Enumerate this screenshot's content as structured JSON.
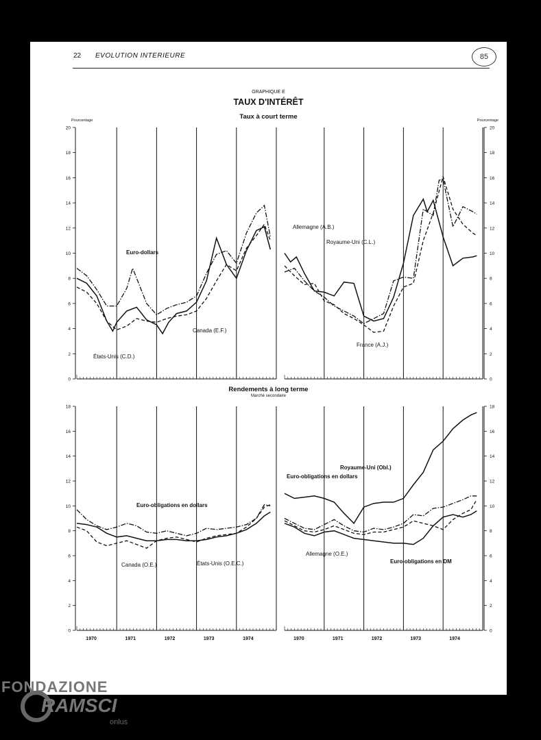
{
  "header": {
    "page_number": "22",
    "title": "EVOLUTION INTERIEURE",
    "stamp": "85"
  },
  "figure": {
    "label": "GRAPHIQUE E",
    "title": "TAUX D'INTÉRÊT",
    "short_title": "Taux à court terme",
    "long_title": "Rendements à long terme",
    "long_subtitle": "Marché secondaire",
    "y_unit": "Pourcentage"
  },
  "watermark": {
    "line1": "FONDAZIONE",
    "line2": "RAMSCI",
    "line3": "onlus"
  },
  "chart_data": [
    {
      "type": "line",
      "panel": "short-left",
      "title": "Taux à court terme",
      "ylabel": "Pourcentage",
      "xlim": [
        1970,
        1975
      ],
      "ylim": [
        0,
        20
      ],
      "x_ticks": [
        "1970",
        "1971",
        "1972",
        "1973",
        "1974"
      ],
      "y_ticks": [
        0,
        2,
        4,
        6,
        8,
        10,
        12,
        14,
        16,
        18,
        20
      ],
      "series": [
        {
          "name": "Euro-dollars",
          "style": "dashdot",
          "x": [
            1970.0,
            1970.25,
            1970.5,
            1970.75,
            1971.0,
            1971.25,
            1971.4,
            1971.55,
            1971.75,
            1972.0,
            1972.25,
            1972.5,
            1972.75,
            1973.0,
            1973.25,
            1973.5,
            1973.75,
            1974.0,
            1974.25,
            1974.5,
            1974.7,
            1974.85
          ],
          "y": [
            8.8,
            8.2,
            7.1,
            5.8,
            5.8,
            7.2,
            8.8,
            7.6,
            6.0,
            5.1,
            5.6,
            5.9,
            6.1,
            6.6,
            8.4,
            9.9,
            10.2,
            9.2,
            11.6,
            13.2,
            13.8,
            11.3
          ]
        },
        {
          "name": "États-Unis (C.D.)",
          "style": "solid",
          "x": [
            1970.0,
            1970.25,
            1970.5,
            1970.75,
            1970.9,
            1971.0,
            1971.25,
            1971.5,
            1971.75,
            1972.0,
            1972.15,
            1972.3,
            1972.5,
            1972.75,
            1973.0,
            1973.25,
            1973.5,
            1973.75,
            1974.0,
            1974.25,
            1974.5,
            1974.7,
            1974.85
          ],
          "y": [
            8.0,
            7.6,
            6.6,
            4.6,
            3.8,
            4.5,
            5.4,
            5.7,
            4.7,
            4.3,
            3.6,
            4.5,
            5.2,
            5.4,
            6.1,
            7.8,
            11.2,
            9.1,
            8.0,
            10.2,
            11.8,
            12.1,
            10.3
          ]
        },
        {
          "name": "Canada (E.F.)",
          "style": "dashed",
          "x": [
            1970.0,
            1970.25,
            1970.5,
            1970.75,
            1971.0,
            1971.25,
            1971.5,
            1971.75,
            1972.0,
            1972.25,
            1972.5,
            1972.75,
            1973.0,
            1973.25,
            1973.5,
            1973.75,
            1974.0,
            1974.25,
            1974.5,
            1974.7,
            1974.85
          ],
          "y": [
            7.3,
            6.9,
            6.0,
            4.6,
            3.9,
            4.2,
            4.8,
            4.6,
            4.5,
            4.8,
            5.0,
            5.1,
            5.4,
            6.4,
            7.8,
            9.1,
            8.6,
            10.4,
            11.4,
            12.3,
            11.0
          ]
        }
      ],
      "annotations": [
        "Euro-dollars",
        "États-Unis (C.D.)",
        "Canada (E.F.)"
      ]
    },
    {
      "type": "line",
      "panel": "short-right",
      "title": "Taux à court terme",
      "ylabel": "Pourcentage",
      "xlim": [
        1970,
        1975
      ],
      "ylim": [
        0,
        20
      ],
      "x_ticks": [
        "1970",
        "1971",
        "1972",
        "1973",
        "1974"
      ],
      "y_ticks": [
        0,
        2,
        4,
        6,
        8,
        10,
        12,
        14,
        16,
        18,
        20
      ],
      "series": [
        {
          "name": "Allemagne (A.B.)",
          "style": "solid",
          "x": [
            1970.0,
            1970.15,
            1970.3,
            1970.5,
            1970.75,
            1971.0,
            1971.25,
            1971.5,
            1971.75,
            1972.0,
            1972.25,
            1972.5,
            1972.75,
            1973.0,
            1973.25,
            1973.5,
            1973.6,
            1973.75,
            1974.0,
            1974.25,
            1974.5,
            1974.75,
            1974.85
          ],
          "y": [
            10.0,
            9.3,
            9.7,
            8.4,
            7.0,
            6.9,
            6.6,
            7.7,
            7.6,
            5.0,
            4.6,
            4.8,
            6.5,
            9.2,
            13.0,
            14.3,
            13.3,
            14.2,
            11.3,
            9.0,
            9.6,
            9.7,
            9.8
          ]
        },
        {
          "name": "Royaume-Uni (C.L.)",
          "style": "dashdot",
          "x": [
            1970.0,
            1970.25,
            1970.5,
            1970.75,
            1971.0,
            1971.25,
            1971.5,
            1971.75,
            1972.0,
            1972.25,
            1972.5,
            1972.75,
            1973.0,
            1973.25,
            1973.5,
            1973.75,
            1973.9,
            1974.0,
            1974.25,
            1974.5,
            1974.75,
            1974.85
          ],
          "y": [
            8.5,
            8.8,
            7.8,
            7.0,
            6.5,
            5.8,
            5.4,
            5.0,
            4.4,
            4.8,
            5.2,
            7.8,
            8.1,
            8.0,
            13.5,
            13.0,
            15.8,
            15.9,
            12.1,
            13.7,
            13.3,
            13.1
          ]
        },
        {
          "name": "France (A.J.)",
          "style": "dashed",
          "x": [
            1970.0,
            1970.25,
            1970.5,
            1970.75,
            1971.0,
            1971.25,
            1971.5,
            1971.75,
            1972.0,
            1972.25,
            1972.5,
            1972.75,
            1973.0,
            1973.25,
            1973.5,
            1973.75,
            1974.0,
            1974.25,
            1974.5,
            1974.75,
            1974.85
          ],
          "y": [
            9.0,
            8.2,
            7.5,
            7.6,
            6.2,
            5.9,
            5.2,
            4.8,
            4.3,
            3.7,
            3.8,
            5.8,
            7.3,
            7.6,
            11.0,
            13.2,
            16.1,
            13.5,
            12.3,
            11.6,
            11.4
          ]
        }
      ],
      "annotations": [
        "Allemagne (A.B.)",
        "Royaume-Uni (C.L.)",
        "France (A.J.)"
      ]
    },
    {
      "type": "line",
      "panel": "long-left",
      "title": "Rendements à long terme",
      "subtitle": "Marché secondaire",
      "xlim": [
        1970,
        1975
      ],
      "ylim": [
        0,
        18
      ],
      "x_ticks": [
        "1970",
        "1971",
        "1972",
        "1973",
        "1974"
      ],
      "y_ticks": [
        0,
        2,
        4,
        6,
        8,
        10,
        12,
        14,
        16,
        18
      ],
      "series": [
        {
          "name": "Euro-obligations en dollars",
          "style": "dashdot",
          "x": [
            1970.0,
            1970.25,
            1970.5,
            1970.75,
            1971.0,
            1971.25,
            1971.5,
            1971.75,
            1972.0,
            1972.25,
            1972.5,
            1972.75,
            1973.0,
            1973.25,
            1973.5,
            1973.75,
            1974.0,
            1974.25,
            1974.5,
            1974.7,
            1974.85
          ],
          "y": [
            9.7,
            8.9,
            8.4,
            8.1,
            8.3,
            8.6,
            8.4,
            7.9,
            7.8,
            8.0,
            7.8,
            7.6,
            7.8,
            8.2,
            8.1,
            8.2,
            8.3,
            8.5,
            9.0,
            10.1,
            10.0
          ]
        },
        {
          "name": "Canada (O.E.)",
          "style": "dashed",
          "x": [
            1970.0,
            1970.25,
            1970.5,
            1970.75,
            1971.0,
            1971.25,
            1971.5,
            1971.75,
            1972.0,
            1972.25,
            1972.5,
            1972.75,
            1973.0,
            1973.25,
            1973.5,
            1973.75,
            1974.0,
            1974.25,
            1974.5,
            1974.7,
            1974.85
          ],
          "y": [
            8.3,
            8.0,
            7.1,
            6.8,
            7.0,
            7.2,
            6.9,
            6.6,
            7.2,
            7.4,
            7.5,
            7.3,
            7.1,
            7.4,
            7.6,
            7.7,
            7.8,
            8.3,
            9.0,
            9.9,
            10.1
          ]
        },
        {
          "name": "États-Unis (O.E.C.)",
          "style": "solid",
          "x": [
            1970.0,
            1970.25,
            1970.5,
            1970.75,
            1971.0,
            1971.25,
            1971.5,
            1971.75,
            1972.0,
            1972.25,
            1972.5,
            1972.75,
            1973.0,
            1973.25,
            1973.5,
            1973.75,
            1974.0,
            1974.25,
            1974.5,
            1974.7,
            1974.85
          ],
          "y": [
            8.6,
            8.5,
            8.3,
            7.8,
            7.5,
            7.6,
            7.4,
            7.2,
            7.2,
            7.3,
            7.3,
            7.2,
            7.2,
            7.3,
            7.5,
            7.6,
            7.8,
            8.1,
            8.6,
            9.2,
            9.5
          ]
        }
      ],
      "annotations": [
        "Euro-obligations en dollars",
        "Canada (O.E.)",
        "États-Unis (O.E.C.)"
      ]
    },
    {
      "type": "line",
      "panel": "long-right",
      "title": "Rendements à long terme",
      "subtitle": "Marché secondaire",
      "xlim": [
        1970,
        1975
      ],
      "ylim": [
        0,
        18
      ],
      "x_ticks": [
        "1970",
        "1971",
        "1972",
        "1973",
        "1974"
      ],
      "y_ticks": [
        0,
        2,
        4,
        6,
        8,
        10,
        12,
        14,
        16,
        18
      ],
      "series": [
        {
          "name": "Royaume-Uni (Obl.)",
          "style": "solid",
          "x": [
            1970.0,
            1970.25,
            1970.5,
            1970.75,
            1971.0,
            1971.25,
            1971.5,
            1971.75,
            1972.0,
            1972.25,
            1972.5,
            1972.75,
            1973.0,
            1973.25,
            1973.5,
            1973.75,
            1974.0,
            1974.25,
            1974.5,
            1974.7,
            1974.85
          ],
          "y": [
            11.0,
            10.6,
            10.7,
            10.8,
            10.6,
            10.3,
            9.4,
            8.6,
            9.9,
            10.2,
            10.3,
            10.3,
            10.6,
            11.7,
            12.7,
            14.5,
            15.2,
            16.2,
            16.9,
            17.3,
            17.5
          ]
        },
        {
          "name": "Euro-obligations en dollars",
          "style": "dashdot",
          "x": [
            1970.0,
            1970.25,
            1970.5,
            1970.75,
            1971.0,
            1971.25,
            1971.5,
            1971.75,
            1972.0,
            1972.25,
            1972.5,
            1972.75,
            1973.0,
            1973.25,
            1973.5,
            1973.75,
            1974.0,
            1974.25,
            1974.5,
            1974.7,
            1974.85
          ],
          "y": [
            9.0,
            8.6,
            8.2,
            8.1,
            8.5,
            8.9,
            8.4,
            8.0,
            7.9,
            8.2,
            8.1,
            8.3,
            8.6,
            9.3,
            9.2,
            9.8,
            9.9,
            10.2,
            10.5,
            10.8,
            10.8
          ]
        },
        {
          "name": "Allemagne (O.E.)",
          "style": "dashed",
          "x": [
            1970.0,
            1970.25,
            1970.5,
            1970.75,
            1971.0,
            1971.25,
            1971.5,
            1971.75,
            1972.0,
            1972.25,
            1972.5,
            1972.75,
            1973.0,
            1973.25,
            1973.5,
            1973.75,
            1974.0,
            1974.25,
            1974.5,
            1974.7,
            1974.85
          ],
          "y": [
            8.8,
            8.4,
            8.0,
            7.9,
            8.1,
            8.4,
            8.1,
            7.8,
            7.7,
            7.9,
            7.9,
            8.1,
            8.3,
            8.8,
            8.6,
            8.4,
            8.1,
            8.9,
            9.4,
            9.7,
            10.5
          ]
        },
        {
          "name": "Euro-obligations en DM",
          "style": "solid",
          "x": [
            1970.0,
            1970.25,
            1970.5,
            1970.75,
            1971.0,
            1971.25,
            1971.5,
            1971.75,
            1972.0,
            1972.25,
            1972.5,
            1972.75,
            1973.0,
            1973.25,
            1973.5,
            1973.75,
            1974.0,
            1974.25,
            1974.5,
            1974.7,
            1974.85
          ],
          "y": [
            8.6,
            8.3,
            7.8,
            7.6,
            7.9,
            8.0,
            7.7,
            7.4,
            7.3,
            7.2,
            7.1,
            7.0,
            7.0,
            6.9,
            7.4,
            8.4,
            9.1,
            9.3,
            9.1,
            9.3,
            9.6
          ]
        }
      ],
      "annotations": [
        "Royaume-Uni (Obl.)",
        "Euro-obligations en dollars",
        "Allemagne (O.E.)",
        "Euro-obligations en DM"
      ]
    }
  ]
}
